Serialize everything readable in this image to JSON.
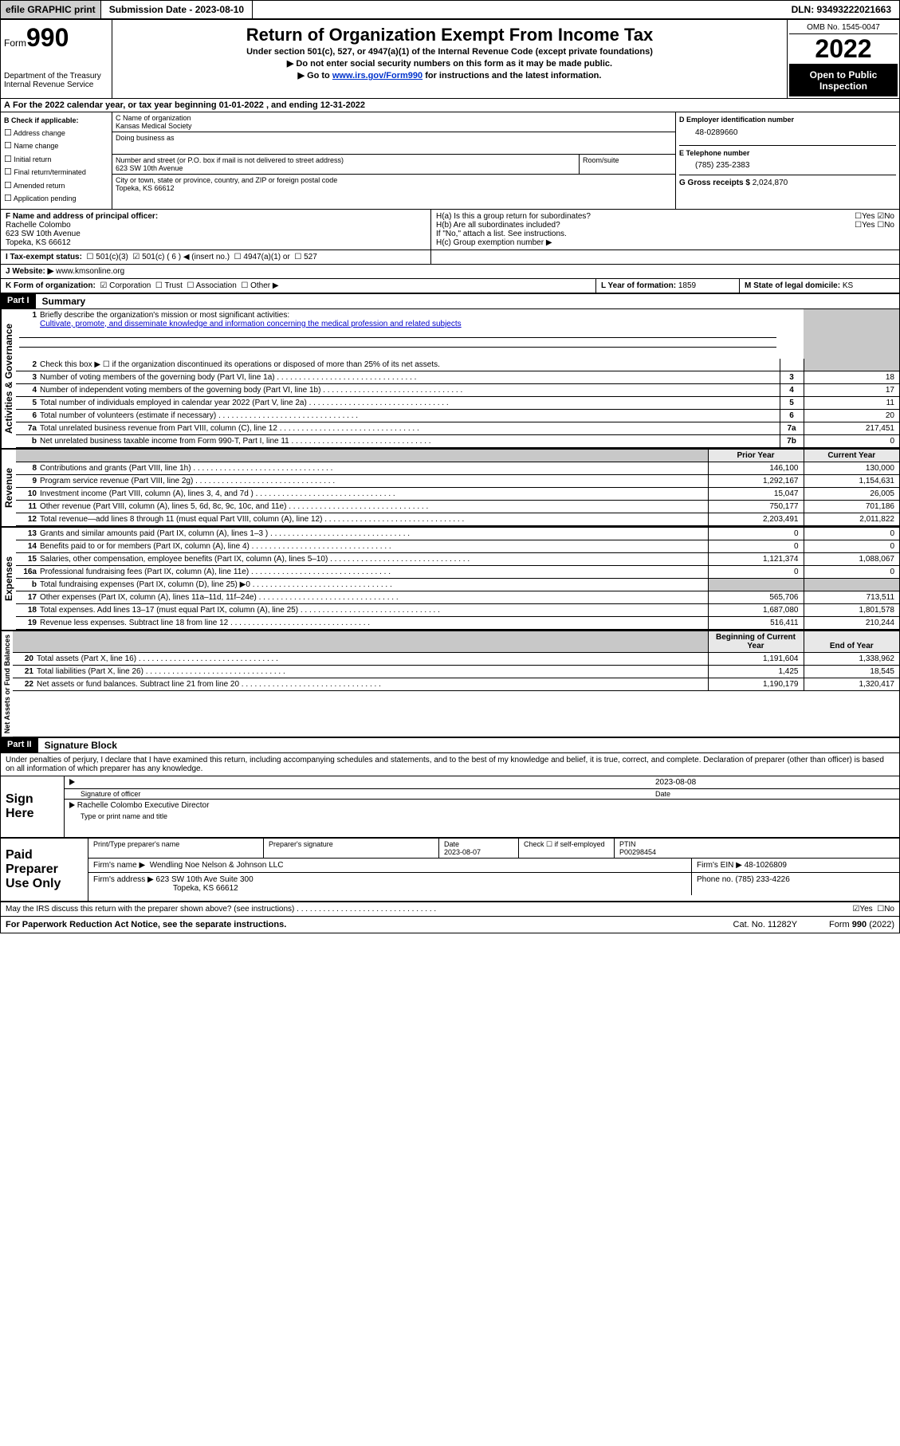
{
  "topbar": {
    "efile": "efile GRAPHIC print",
    "subdate_lbl": "Submission Date - 2023-08-10",
    "dln": "DLN: 93493222021663"
  },
  "header": {
    "formword": "Form",
    "formnum": "990",
    "dept": "Department of the Treasury",
    "irs": "Internal Revenue Service",
    "title": "Return of Organization Exempt From Income Tax",
    "sub1": "Under section 501(c), 527, or 4947(a)(1) of the Internal Revenue Code (except private foundations)",
    "sub2": "▶ Do not enter social security numbers on this form as it may be made public.",
    "sub3_pre": "▶ Go to ",
    "sub3_link": "www.irs.gov/Form990",
    "sub3_post": " for instructions and the latest information.",
    "omb": "OMB No. 1545-0047",
    "year": "2022",
    "open": "Open to Public Inspection"
  },
  "line_a": "For the 2022 calendar year, or tax year beginning 01-01-2022   , and ending 12-31-2022",
  "section_b": {
    "title": "B Check if applicable:",
    "items": [
      "Address change",
      "Name change",
      "Initial return",
      "Final return/terminated",
      "Amended return",
      "Application pending"
    ]
  },
  "section_c": {
    "name_lbl": "C Name of organization",
    "name": "Kansas Medical Society",
    "dba_lbl": "Doing business as",
    "dba": "",
    "street_lbl": "Number and street (or P.O. box if mail is not delivered to street address)",
    "room_lbl": "Room/suite",
    "street": "623 SW 10th Avenue",
    "city_lbl": "City or town, state or province, country, and ZIP or foreign postal code",
    "city": "Topeka, KS  66612"
  },
  "section_d": {
    "lbl": "D Employer identification number",
    "val": "48-0289660"
  },
  "section_e": {
    "lbl": "E Telephone number",
    "val": "(785) 235-2383"
  },
  "section_g": {
    "lbl": "G Gross receipts $",
    "val": "2,024,870"
  },
  "section_f": {
    "lbl": "F  Name and address of principal officer:",
    "name": "Rachelle Colombo",
    "addr1": "623 SW 10th Avenue",
    "addr2": "Topeka, KS  66612"
  },
  "section_h": {
    "ha": "H(a)  Is this a group return for subordinates?",
    "ha_yes": "Yes",
    "ha_no": "No",
    "hb": "H(b)  Are all subordinates included?",
    "hb_yes": "Yes",
    "hb_no": "No",
    "hb_note": "If \"No,\" attach a list. See instructions.",
    "hc": "H(c)  Group exemption number ▶"
  },
  "tax_exempt": {
    "lbl": "I   Tax-exempt status:",
    "o1": "501(c)(3)",
    "o2": "501(c) ( 6 ) ◀ (insert no.)",
    "o3": "4947(a)(1) or",
    "o4": "527"
  },
  "website": {
    "lbl": "J   Website: ▶",
    "val": "www.kmsonline.org"
  },
  "kform": {
    "lbl": "K Form of organization:",
    "opts": [
      "Corporation",
      "Trust",
      "Association",
      "Other ▶"
    ]
  },
  "lyear": {
    "lbl": "L Year of formation:",
    "val": "1859"
  },
  "mstate": {
    "lbl": "M State of legal domicile:",
    "val": "KS"
  },
  "part1": {
    "hdr": "Part I",
    "title": "Summary",
    "l1": "Briefly describe the organization's mission or most significant activities:",
    "mission": "Cultivate, promote, and disseminate knowledge and information concerning the medical profession and related subjects",
    "l2": "Check this box ▶ ☐ if the organization discontinued its operations or disposed of more than 25% of its net assets.",
    "rows_ag": [
      {
        "n": "3",
        "t": "Number of voting members of the governing body (Part VI, line 1a)",
        "k": "3",
        "v": "18"
      },
      {
        "n": "4",
        "t": "Number of independent voting members of the governing body (Part VI, line 1b)",
        "k": "4",
        "v": "17"
      },
      {
        "n": "5",
        "t": "Total number of individuals employed in calendar year 2022 (Part V, line 2a)",
        "k": "5",
        "v": "11"
      },
      {
        "n": "6",
        "t": "Total number of volunteers (estimate if necessary)",
        "k": "6",
        "v": "20"
      },
      {
        "n": "7a",
        "t": "Total unrelated business revenue from Part VIII, column (C), line 12",
        "k": "7a",
        "v": "217,451"
      },
      {
        "n": "b",
        "t": "Net unrelated business taxable income from Form 990-T, Part I, line 11",
        "k": "7b",
        "v": "0"
      }
    ],
    "col_prior": "Prior Year",
    "col_cur": "Current Year",
    "rows_rev": [
      {
        "n": "8",
        "t": "Contributions and grants (Part VIII, line 1h)",
        "p": "146,100",
        "c": "130,000"
      },
      {
        "n": "9",
        "t": "Program service revenue (Part VIII, line 2g)",
        "p": "1,292,167",
        "c": "1,154,631"
      },
      {
        "n": "10",
        "t": "Investment income (Part VIII, column (A), lines 3, 4, and 7d )",
        "p": "15,047",
        "c": "26,005"
      },
      {
        "n": "11",
        "t": "Other revenue (Part VIII, column (A), lines 5, 6d, 8c, 9c, 10c, and 11e)",
        "p": "750,177",
        "c": "701,186"
      },
      {
        "n": "12",
        "t": "Total revenue—add lines 8 through 11 (must equal Part VIII, column (A), line 12)",
        "p": "2,203,491",
        "c": "2,011,822"
      }
    ],
    "rows_exp": [
      {
        "n": "13",
        "t": "Grants and similar amounts paid (Part IX, column (A), lines 1–3 )",
        "p": "0",
        "c": "0"
      },
      {
        "n": "14",
        "t": "Benefits paid to or for members (Part IX, column (A), line 4)",
        "p": "0",
        "c": "0"
      },
      {
        "n": "15",
        "t": "Salaries, other compensation, employee benefits (Part IX, column (A), lines 5–10)",
        "p": "1,121,374",
        "c": "1,088,067"
      },
      {
        "n": "16a",
        "t": "Professional fundraising fees (Part IX, column (A), line 11e)",
        "p": "0",
        "c": "0"
      },
      {
        "n": "b",
        "t": "Total fundraising expenses (Part IX, column (D), line 25) ▶0",
        "p": "",
        "c": ""
      },
      {
        "n": "17",
        "t": "Other expenses (Part IX, column (A), lines 11a–11d, 11f–24e)",
        "p": "565,706",
        "c": "713,511"
      },
      {
        "n": "18",
        "t": "Total expenses. Add lines 13–17 (must equal Part IX, column (A), line 25)",
        "p": "1,687,080",
        "c": "1,801,578"
      },
      {
        "n": "19",
        "t": "Revenue less expenses. Subtract line 18 from line 12",
        "p": "516,411",
        "c": "210,244"
      }
    ],
    "col_boy": "Beginning of Current Year",
    "col_eoy": "End of Year",
    "rows_na": [
      {
        "n": "20",
        "t": "Total assets (Part X, line 16)",
        "p": "1,191,604",
        "c": "1,338,962"
      },
      {
        "n": "21",
        "t": "Total liabilities (Part X, line 26)",
        "p": "1,425",
        "c": "18,545"
      },
      {
        "n": "22",
        "t": "Net assets or fund balances. Subtract line 21 from line 20",
        "p": "1,190,179",
        "c": "1,320,417"
      }
    ],
    "vlab_ag": "Activities & Governance",
    "vlab_rev": "Revenue",
    "vlab_exp": "Expenses",
    "vlab_na": "Net Assets or Fund Balances"
  },
  "part2": {
    "hdr": "Part II",
    "title": "Signature Block",
    "decl": "Under penalties of perjury, I declare that I have examined this return, including accompanying schedules and statements, and to the best of my knowledge and belief, it is true, correct, and complete. Declaration of preparer (other than officer) is based on all information of which preparer has any knowledge.",
    "sign_here": "Sign Here",
    "sig_officer": "Signature of officer",
    "sig_date": "2023-08-08",
    "date_lbl": "Date",
    "officer_name": "Rachelle Colombo  Executive Director",
    "officer_title_lbl": "Type or print name and title",
    "paid_prep": "Paid Preparer Use Only",
    "prep_name_lbl": "Print/Type preparer's name",
    "prep_sig_lbl": "Preparer's signature",
    "prep_date_lbl": "Date",
    "prep_date": "2023-08-07",
    "check_if": "Check ☐ if self-employed",
    "ptin_lbl": "PTIN",
    "ptin": "P00298454",
    "firm_name_lbl": "Firm's name    ▶",
    "firm_name": "Wendling Noe Nelson & Johnson LLC",
    "firm_ein_lbl": "Firm's EIN ▶",
    "firm_ein": "48-1026809",
    "firm_addr_lbl": "Firm's address ▶",
    "firm_addr1": "623 SW 10th Ave Suite 300",
    "firm_addr2": "Topeka, KS  66612",
    "phone_lbl": "Phone no.",
    "phone": "(785) 233-4226",
    "may_irs": "May the IRS discuss this return with the preparer shown above? (see instructions)",
    "may_yes": "Yes",
    "may_no": "No"
  },
  "footer": {
    "fpra": "For Paperwork Reduction Act Notice, see the separate instructions.",
    "cat": "Cat. No. 11282Y",
    "f990": "Form 990 (2022)"
  }
}
